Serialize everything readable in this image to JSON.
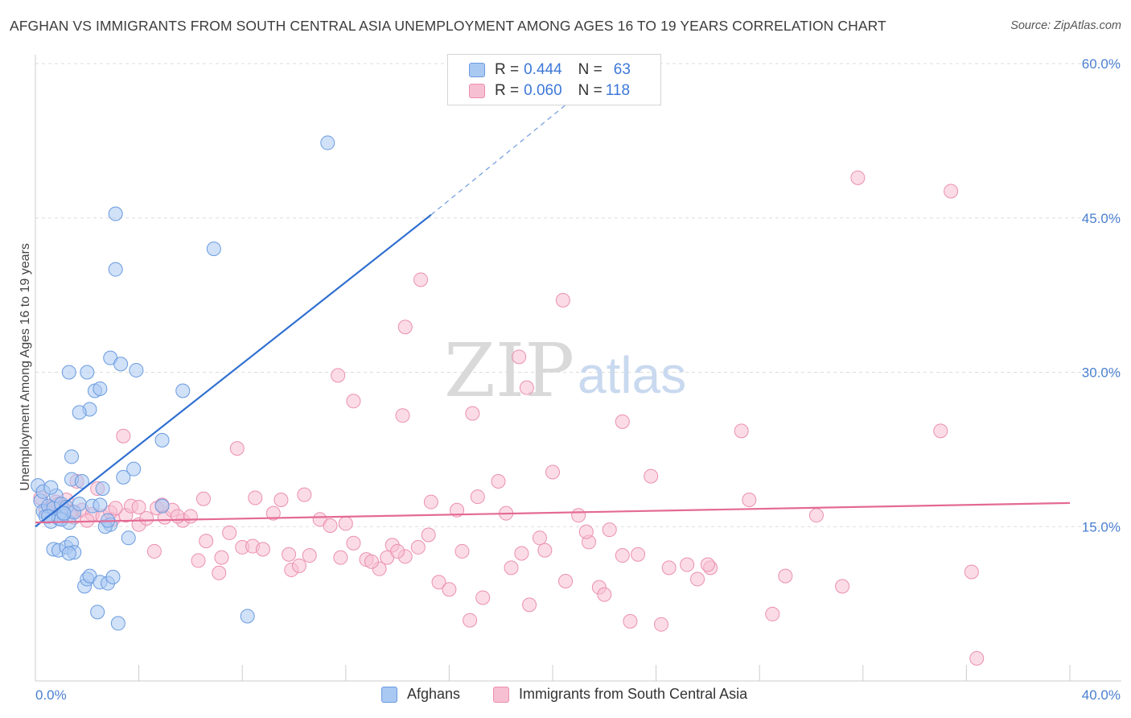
{
  "header": {
    "title": "AFGHAN VS IMMIGRANTS FROM SOUTH CENTRAL ASIA UNEMPLOYMENT AMONG AGES 16 TO 19 YEARS CORRELATION CHART",
    "source": "Source: ZipAtlas.com"
  },
  "watermark": {
    "zip": "ZIP",
    "atlas": "atlas"
  },
  "legend": {
    "series1": {
      "r_label": "R = ",
      "r_value": "0.444",
      "n_label": "N = ",
      "n_value": "63"
    },
    "series2": {
      "r_label": "R = ",
      "r_value": "0.060",
      "n_label": "N = ",
      "n_value": "118"
    }
  },
  "bottom_legend": {
    "series1": "Afghans",
    "series2": "Immigrants from South Central Asia"
  },
  "colors": {
    "blue_fill": "#a9c8f2",
    "blue_stroke": "#6a9be0",
    "blue_line": "#2f6fd0",
    "pink_fill": "#f7bfd2",
    "pink_stroke": "#eb8fb0",
    "pink_line": "#e46a95",
    "grid": "#dddddd",
    "tick_label": "#4a7fd0"
  },
  "chart_data": {
    "type": "scatter",
    "title": "AFGHAN VS IMMIGRANTS FROM SOUTH CENTRAL ASIA UNEMPLOYMENT AMONG AGES 16 TO 19 YEARS CORRELATION CHART",
    "xlabel": "",
    "ylabel": "Unemployment Among Ages 16 to 19 years",
    "xlim": [
      0,
      40
    ],
    "ylim": [
      0,
      60
    ],
    "x_tick_labels": [
      "0.0%",
      "40.0%"
    ],
    "y_ticks": [
      15,
      30,
      45,
      60
    ],
    "y_tick_labels": [
      "15.0%",
      "30.0%",
      "45.0%",
      "60.0%"
    ],
    "grid": true,
    "legend_position": "top-center",
    "series": [
      {
        "name": "Afghans",
        "R": 0.444,
        "N": 63,
        "trend": {
          "x": [
            0,
            15.3
          ],
          "y": [
            15.0,
            45.3
          ],
          "dashed_to": [
            21.0,
            57.0
          ]
        },
        "points": [
          [
            0.1,
            19.0
          ],
          [
            0.2,
            17.5
          ],
          [
            0.3,
            16.5
          ],
          [
            0.4,
            16.0
          ],
          [
            0.5,
            17.0
          ],
          [
            0.6,
            15.5
          ],
          [
            0.7,
            16.8
          ],
          [
            0.8,
            18.0
          ],
          [
            0.9,
            15.8
          ],
          [
            1.0,
            17.2
          ],
          [
            1.1,
            16.2
          ],
          [
            1.2,
            16.9
          ],
          [
            1.3,
            15.4
          ],
          [
            1.5,
            16.4
          ],
          [
            0.3,
            18.4
          ],
          [
            0.6,
            18.8
          ],
          [
            0.7,
            12.8
          ],
          [
            0.9,
            12.7
          ],
          [
            1.2,
            13.0
          ],
          [
            1.4,
            13.4
          ],
          [
            1.5,
            12.5
          ],
          [
            1.3,
            12.4
          ],
          [
            1.9,
            9.2
          ],
          [
            2.0,
            9.9
          ],
          [
            2.1,
            10.2
          ],
          [
            2.5,
            9.6
          ],
          [
            2.8,
            9.5
          ],
          [
            3.0,
            10.1
          ],
          [
            2.4,
            6.7
          ],
          [
            3.2,
            5.6
          ],
          [
            1.4,
            19.6
          ],
          [
            1.8,
            19.4
          ],
          [
            1.4,
            21.8
          ],
          [
            1.7,
            17.2
          ],
          [
            2.2,
            17.0
          ],
          [
            2.5,
            17.1
          ],
          [
            2.6,
            18.7
          ],
          [
            2.9,
            15.2
          ],
          [
            2.7,
            15.0
          ],
          [
            3.6,
            13.9
          ],
          [
            3.4,
            19.8
          ],
          [
            3.8,
            20.6
          ],
          [
            1.3,
            30.0
          ],
          [
            2.0,
            30.0
          ],
          [
            2.3,
            28.2
          ],
          [
            2.5,
            28.4
          ],
          [
            2.1,
            26.4
          ],
          [
            1.7,
            26.1
          ],
          [
            2.9,
            31.4
          ],
          [
            3.3,
            30.8
          ],
          [
            3.9,
            30.2
          ],
          [
            4.9,
            23.4
          ],
          [
            5.7,
            28.2
          ],
          [
            4.9,
            17.0
          ],
          [
            3.1,
            40.0
          ],
          [
            3.1,
            45.4
          ],
          [
            6.9,
            42.0
          ],
          [
            11.3,
            52.3
          ],
          [
            8.2,
            6.3
          ],
          [
            0.5,
            16.0
          ],
          [
            1.0,
            15.7
          ],
          [
            2.8,
            15.6
          ],
          [
            1.1,
            16.3
          ]
        ]
      },
      {
        "name": "Immigrants from South Central Asia",
        "R": 0.06,
        "N": 118,
        "trend": {
          "x": [
            0,
            40
          ],
          "y": [
            15.4,
            17.3
          ]
        },
        "points": [
          [
            0.2,
            17.8
          ],
          [
            0.4,
            16.6
          ],
          [
            0.6,
            16.9
          ],
          [
            0.8,
            17.4
          ],
          [
            1.0,
            16.1
          ],
          [
            1.2,
            17.6
          ],
          [
            1.5,
            15.9
          ],
          [
            1.6,
            19.4
          ],
          [
            1.8,
            16.6
          ],
          [
            2.2,
            16.2
          ],
          [
            2.4,
            18.7
          ],
          [
            2.6,
            16.0
          ],
          [
            3.0,
            15.7
          ],
          [
            3.5,
            16.1
          ],
          [
            3.7,
            17.0
          ],
          [
            4.0,
            15.2
          ],
          [
            4.3,
            15.8
          ],
          [
            4.7,
            16.8
          ],
          [
            5.0,
            15.9
          ],
          [
            5.3,
            16.6
          ],
          [
            5.7,
            15.6
          ],
          [
            6.3,
            11.7
          ],
          [
            6.6,
            13.6
          ],
          [
            7.1,
            10.5
          ],
          [
            7.5,
            14.4
          ],
          [
            8.0,
            13.0
          ],
          [
            8.4,
            13.1
          ],
          [
            8.8,
            12.8
          ],
          [
            9.2,
            16.3
          ],
          [
            9.5,
            17.6
          ],
          [
            9.9,
            10.8
          ],
          [
            10.2,
            11.2
          ],
          [
            10.6,
            12.2
          ],
          [
            11.0,
            15.7
          ],
          [
            11.4,
            15.1
          ],
          [
            11.8,
            12.0
          ],
          [
            12.3,
            13.4
          ],
          [
            12.8,
            11.8
          ],
          [
            13.3,
            10.9
          ],
          [
            13.8,
            13.2
          ],
          [
            14.3,
            12.1
          ],
          [
            14.8,
            13.0
          ],
          [
            15.2,
            14.2
          ],
          [
            15.6,
            9.6
          ],
          [
            16.0,
            8.9
          ],
          [
            16.3,
            16.6
          ],
          [
            16.8,
            5.9
          ],
          [
            17.3,
            8.1
          ],
          [
            17.9,
            19.4
          ],
          [
            18.2,
            16.3
          ],
          [
            18.8,
            12.4
          ],
          [
            19.1,
            7.4
          ],
          [
            19.5,
            13.9
          ],
          [
            20.0,
            20.3
          ],
          [
            20.5,
            9.7
          ],
          [
            21.0,
            16.1
          ],
          [
            21.4,
            13.5
          ],
          [
            21.8,
            9.1
          ],
          [
            22.2,
            14.7
          ],
          [
            22.7,
            12.2
          ],
          [
            23.3,
            12.3
          ],
          [
            23.8,
            19.9
          ],
          [
            24.2,
            5.5
          ],
          [
            24.5,
            11.0
          ],
          [
            25.2,
            11.3
          ],
          [
            25.6,
            9.9
          ],
          [
            26.1,
            11.0
          ],
          [
            27.3,
            24.3
          ],
          [
            27.6,
            17.6
          ],
          [
            28.5,
            6.5
          ],
          [
            29.0,
            10.2
          ],
          [
            30.2,
            16.1
          ],
          [
            31.2,
            9.2
          ],
          [
            31.8,
            48.9
          ],
          [
            35.0,
            24.3
          ],
          [
            35.4,
            47.6
          ],
          [
            36.2,
            10.6
          ],
          [
            36.4,
            2.2
          ],
          [
            14.3,
            34.4
          ],
          [
            14.9,
            39.0
          ],
          [
            18.7,
            31.5
          ],
          [
            19.0,
            28.5
          ],
          [
            20.4,
            37.0
          ],
          [
            11.7,
            29.7
          ],
          [
            12.3,
            27.2
          ],
          [
            14.2,
            25.8
          ],
          [
            16.9,
            26.0
          ],
          [
            22.7,
            25.2
          ],
          [
            3.4,
            23.8
          ],
          [
            7.8,
            22.6
          ],
          [
            6.5,
            17.7
          ],
          [
            7.2,
            12.0
          ],
          [
            8.5,
            17.8
          ],
          [
            9.8,
            12.3
          ],
          [
            10.4,
            18.1
          ],
          [
            12.0,
            15.3
          ],
          [
            13.0,
            11.6
          ],
          [
            13.6,
            12.0
          ],
          [
            14.0,
            12.6
          ],
          [
            15.3,
            17.4
          ],
          [
            16.5,
            12.6
          ],
          [
            17.1,
            17.9
          ],
          [
            18.4,
            11.0
          ],
          [
            19.7,
            12.7
          ],
          [
            21.3,
            14.5
          ],
          [
            22.0,
            8.4
          ],
          [
            23.0,
            5.8
          ],
          [
            26.0,
            11.3
          ],
          [
            4.6,
            12.6
          ],
          [
            5.5,
            16.0
          ],
          [
            6.0,
            16.0
          ],
          [
            2.9,
            16.4
          ],
          [
            3.1,
            16.8
          ],
          [
            4.0,
            16.9
          ],
          [
            4.9,
            17.1
          ],
          [
            0.9,
            17.2
          ],
          [
            1.4,
            16.5
          ],
          [
            2.0,
            15.6
          ]
        ]
      }
    ]
  }
}
